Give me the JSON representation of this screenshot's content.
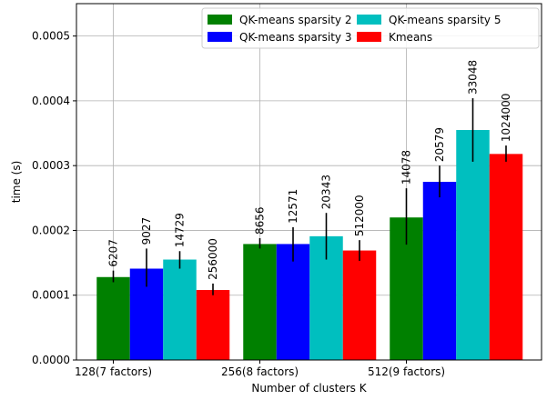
{
  "chart_data": {
    "type": "bar",
    "title": "",
    "xlabel": "Number of clusters K",
    "ylabel": "time (s)",
    "categories": [
      "128(7 factors)",
      "256(8 factors)",
      "512(9 factors)"
    ],
    "ylim": [
      0,
      0.00055
    ],
    "yticks": [
      "0.0000",
      "0.0001",
      "0.0002",
      "0.0003",
      "0.0004",
      "0.0005"
    ],
    "grid": true,
    "legend_placement": "top-right",
    "series": [
      {
        "name": "QK-means sparsity 2",
        "color": "#008000",
        "values": [
          0.000128,
          0.000179,
          0.00022
        ],
        "err_low": [
          0.00012,
          0.000172,
          0.000178
        ],
        "err_high": [
          0.000138,
          0.000188,
          0.000265
        ],
        "labels": [
          "6207",
          "8656",
          "14078"
        ]
      },
      {
        "name": "QK-means sparsity 3",
        "color": "#0000ff",
        "values": [
          0.000141,
          0.000179,
          0.000275
        ],
        "err_low": [
          0.000113,
          0.000152,
          0.000251
        ],
        "err_high": [
          0.000172,
          0.000205,
          0.0003
        ],
        "labels": [
          "9027",
          "12571",
          "20579"
        ]
      },
      {
        "name": "QK-means sparsity 5",
        "color": "#00bfbf",
        "values": [
          0.000155,
          0.000191,
          0.000355
        ],
        "err_low": [
          0.000141,
          0.000155,
          0.000306
        ],
        "err_high": [
          0.000168,
          0.000227,
          0.000404
        ],
        "labels": [
          "14729",
          "20343",
          "33048"
        ]
      },
      {
        "name": "Kmeans",
        "color": "#ff0000",
        "values": [
          0.000108,
          0.000169,
          0.000318
        ],
        "err_low": [
          0.0001,
          0.000153,
          0.000306
        ],
        "err_high": [
          0.000118,
          0.000185,
          0.000331
        ],
        "labels": [
          "256000",
          "512000",
          "1024000"
        ]
      }
    ]
  }
}
